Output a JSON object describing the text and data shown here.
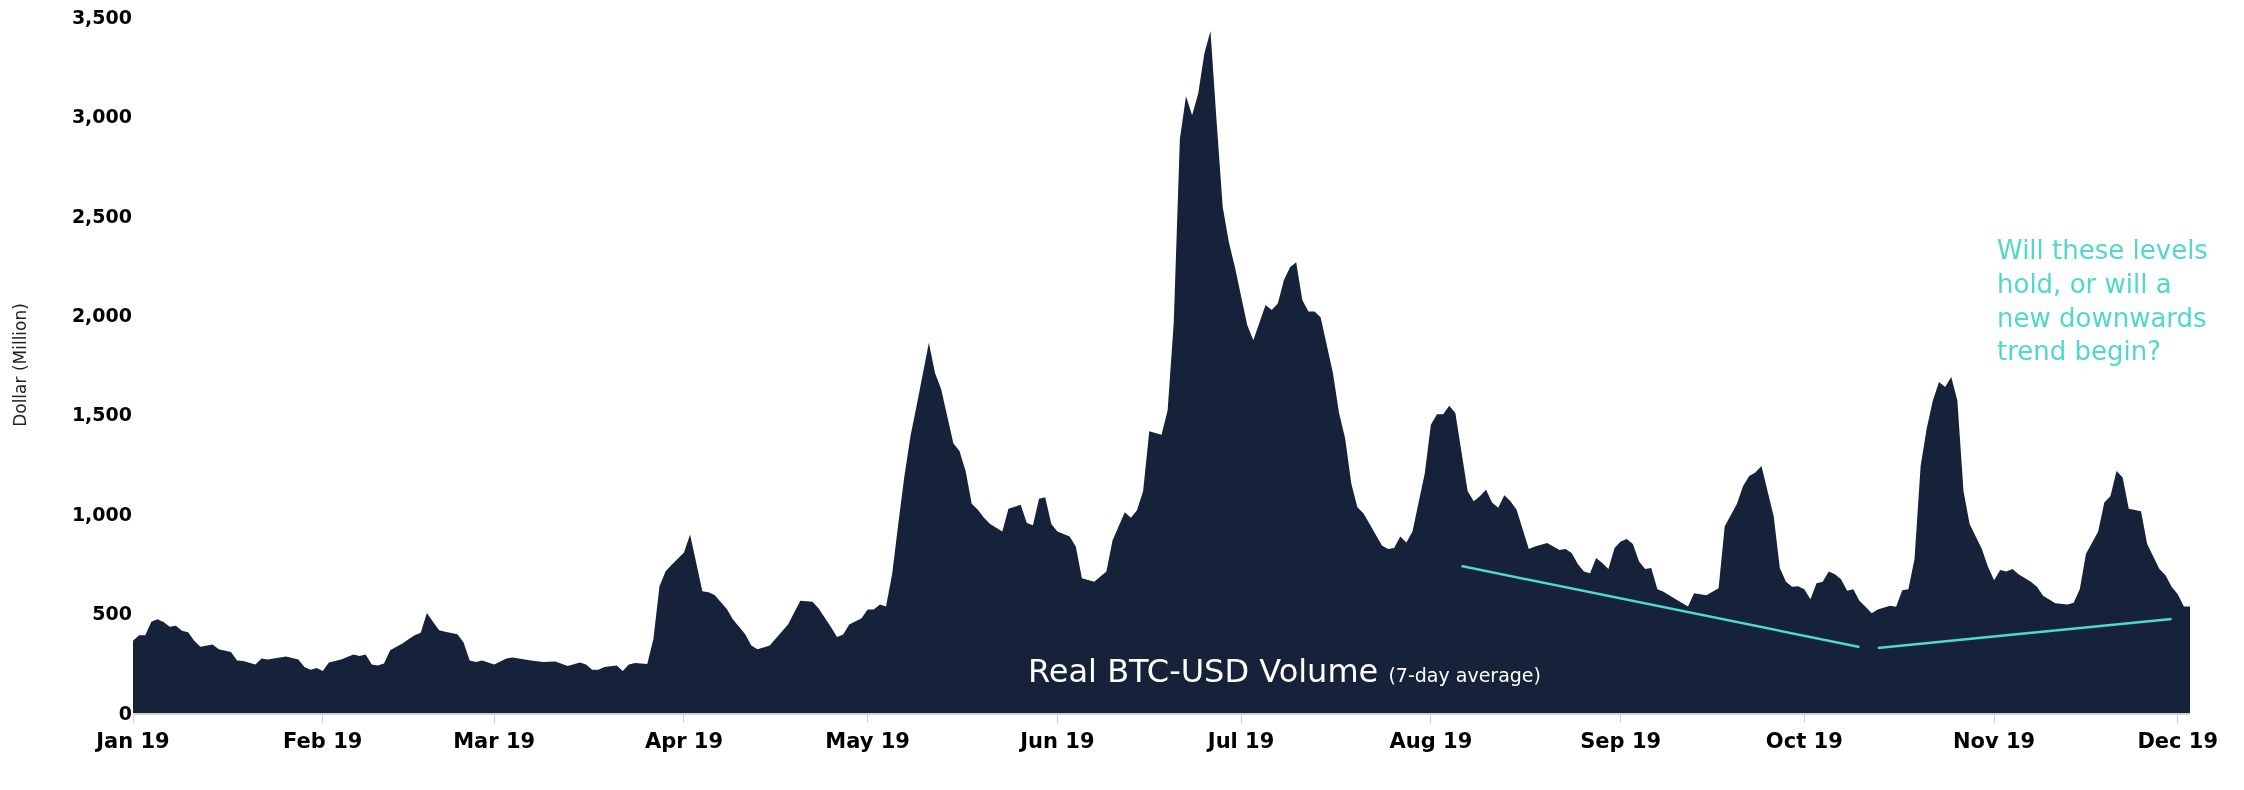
{
  "chart_data": {
    "type": "area",
    "title": "Real BTC-USD Volume",
    "subtitle": "(7-day average)",
    "ylabel": "Dollar (Million)",
    "annotations": [
      "Will these levels hold, or will a new downwards trend begin?"
    ],
    "xlim": [
      "2019-01-01",
      "2019-12-03"
    ],
    "xticks": [
      {
        "value": "2019-01-01",
        "label": "Jan 19"
      },
      {
        "value": "2019-02-01",
        "label": "Feb 19"
      },
      {
        "value": "2019-03-01",
        "label": "Mar 19"
      },
      {
        "value": "2019-04-01",
        "label": "Apr 19"
      },
      {
        "value": "2019-05-01",
        "label": "May 19"
      },
      {
        "value": "2019-06-01",
        "label": "Jun 19"
      },
      {
        "value": "2019-07-01",
        "label": "Jul 19"
      },
      {
        "value": "2019-08-01",
        "label": "Aug 19"
      },
      {
        "value": "2019-09-01",
        "label": "Sep 19"
      },
      {
        "value": "2019-10-01",
        "label": "Oct 19"
      },
      {
        "value": "2019-11-01",
        "label": "Nov 19"
      },
      {
        "value": "2019-12-01",
        "label": "Dec 19"
      }
    ],
    "ylim": [
      0,
      3500
    ],
    "yticks": [
      0,
      500,
      {
        "value": 1000,
        "label": "1,000"
      },
      {
        "value": 1500,
        "label": "1,500"
      },
      {
        "value": 2000,
        "label": "2,000"
      },
      {
        "value": 2500,
        "label": "2,500"
      },
      {
        "value": 3000,
        "label": "3,000"
      },
      {
        "value": 3500,
        "label": "3,500"
      }
    ],
    "series": [
      {
        "color": "#16223a",
        "x": [
          "2019-01-01",
          "2019-01-02",
          "2019-01-03",
          "2019-01-04",
          "2019-01-05",
          "2019-01-06",
          "2019-01-07",
          "2019-01-08",
          "2019-01-09",
          "2019-01-10",
          "2019-01-11",
          "2019-01-12",
          "2019-01-14",
          "2019-01-15",
          "2019-01-17",
          "2019-01-18",
          "2019-01-19",
          "2019-01-21",
          "2019-01-22",
          "2019-01-23",
          "2019-01-26",
          "2019-01-28",
          "2019-01-29",
          "2019-01-30",
          "2019-01-31",
          "2019-02-01",
          "2019-02-02",
          "2019-02-04",
          "2019-02-06",
          "2019-02-07",
          "2019-02-08",
          "2019-02-09",
          "2019-02-10",
          "2019-02-11",
          "2019-02-12",
          "2019-02-14",
          "2019-02-15",
          "2019-02-16",
          "2019-02-17",
          "2019-02-18",
          "2019-02-19",
          "2019-02-20",
          "2019-02-21",
          "2019-02-23",
          "2019-02-24",
          "2019-02-25",
          "2019-02-26",
          "2019-02-27",
          "2019-03-01",
          "2019-03-03",
          "2019-03-04",
          "2019-03-07",
          "2019-03-09",
          "2019-03-11",
          "2019-03-13",
          "2019-03-15",
          "2019-03-16",
          "2019-03-17",
          "2019-03-18",
          "2019-03-19",
          "2019-03-21",
          "2019-03-22",
          "2019-03-23",
          "2019-03-24",
          "2019-03-26",
          "2019-03-27",
          "2019-03-28",
          "2019-03-29",
          "2019-03-30",
          "2019-04-01",
          "2019-04-02",
          "2019-04-04",
          "2019-04-05",
          "2019-04-06",
          "2019-04-08",
          "2019-04-09",
          "2019-04-10",
          "2019-04-11",
          "2019-04-12",
          "2019-04-13",
          "2019-04-15",
          "2019-04-18",
          "2019-04-20",
          "2019-04-22",
          "2019-04-23",
          "2019-04-25",
          "2019-04-26",
          "2019-04-27",
          "2019-04-28",
          "2019-04-30",
          "2019-05-01",
          "2019-05-02",
          "2019-05-03",
          "2019-05-04",
          "2019-05-05",
          "2019-05-06",
          "2019-05-07",
          "2019-05-08",
          "2019-05-09",
          "2019-05-11",
          "2019-05-12",
          "2019-05-13",
          "2019-05-15",
          "2019-05-16",
          "2019-05-17",
          "2019-05-18",
          "2019-05-19",
          "2019-05-20",
          "2019-05-21",
          "2019-05-23",
          "2019-05-24",
          "2019-05-26",
          "2019-05-27",
          "2019-05-28",
          "2019-05-29",
          "2019-05-30",
          "2019-05-31",
          "2019-06-01",
          "2019-06-03",
          "2019-06-04",
          "2019-06-05",
          "2019-06-07",
          "2019-06-09",
          "2019-06-10",
          "2019-06-12",
          "2019-06-13",
          "2019-06-14",
          "2019-06-15",
          "2019-06-16",
          "2019-06-18",
          "2019-06-19",
          "2019-06-20",
          "2019-06-21",
          "2019-06-22",
          "2019-06-23",
          "2019-06-24",
          "2019-06-25",
          "2019-06-26",
          "2019-06-27",
          "2019-06-28",
          "2019-06-29",
          "2019-06-30",
          "2019-07-02",
          "2019-07-03",
          "2019-07-05",
          "2019-07-06",
          "2019-07-07",
          "2019-07-08",
          "2019-07-09",
          "2019-07-10",
          "2019-07-11",
          "2019-07-12",
          "2019-07-13",
          "2019-07-14",
          "2019-07-16",
          "2019-07-17",
          "2019-07-18",
          "2019-07-19",
          "2019-07-20",
          "2019-07-21",
          "2019-07-22",
          "2019-07-24",
          "2019-07-25",
          "2019-07-26",
          "2019-07-27",
          "2019-07-28",
          "2019-07-29",
          "2019-07-31",
          "2019-08-01",
          "2019-08-02",
          "2019-08-03",
          "2019-08-04",
          "2019-08-05",
          "2019-08-07",
          "2019-08-08",
          "2019-08-09",
          "2019-08-10",
          "2019-08-11",
          "2019-08-12",
          "2019-08-13",
          "2019-08-14",
          "2019-08-15",
          "2019-08-17",
          "2019-08-18",
          "2019-08-20",
          "2019-08-22",
          "2019-08-23",
          "2019-08-24",
          "2019-08-25",
          "2019-08-26",
          "2019-08-27",
          "2019-08-28",
          "2019-08-29",
          "2019-08-30",
          "2019-08-31",
          "2019-09-01",
          "2019-09-02",
          "2019-09-03",
          "2019-09-04",
          "2019-09-05",
          "2019-09-06",
          "2019-09-07",
          "2019-09-08",
          "2019-09-10",
          "2019-09-12",
          "2019-09-13",
          "2019-09-15",
          "2019-09-17",
          "2019-09-18",
          "2019-09-20",
          "2019-09-21",
          "2019-09-22",
          "2019-09-23",
          "2019-09-24",
          "2019-09-26",
          "2019-09-27",
          "2019-09-28",
          "2019-09-29",
          "2019-09-30",
          "2019-10-01",
          "2019-10-02",
          "2019-10-03",
          "2019-10-04",
          "2019-10-05",
          "2019-10-06",
          "2019-10-07",
          "2019-10-08",
          "2019-10-09",
          "2019-10-10",
          "2019-10-11",
          "2019-10-12",
          "2019-10-13",
          "2019-10-15",
          "2019-10-16",
          "2019-10-17",
          "2019-10-18",
          "2019-10-19",
          "2019-10-20",
          "2019-10-21",
          "2019-10-22",
          "2019-10-23",
          "2019-10-24",
          "2019-10-25",
          "2019-10-26",
          "2019-10-27",
          "2019-10-28",
          "2019-10-30",
          "2019-10-31",
          "2019-11-01",
          "2019-11-02",
          "2019-11-03",
          "2019-11-04",
          "2019-11-05",
          "2019-11-07",
          "2019-11-08",
          "2019-11-09",
          "2019-11-11",
          "2019-11-13",
          "2019-11-14",
          "2019-11-15",
          "2019-11-16",
          "2019-11-18",
          "2019-11-19",
          "2019-11-20",
          "2019-11-21",
          "2019-11-22",
          "2019-11-23",
          "2019-11-25",
          "2019-11-26",
          "2019-11-28",
          "2019-11-29",
          "2019-11-30",
          "2019-12-01",
          "2019-12-02",
          "2019-12-03"
        ],
        "values": [
          363,
          391,
          391,
          459,
          472,
          457,
          434,
          439,
          414,
          406,
          363,
          333,
          345,
          320,
          307,
          264,
          261,
          244,
          274,
          269,
          284,
          269,
          231,
          218,
          226,
          211,
          254,
          269,
          294,
          287,
          294,
          244,
          239,
          249,
          315,
          350,
          371,
          391,
          404,
          503,
          459,
          416,
          409,
          396,
          355,
          264,
          256,
          264,
          244,
          274,
          279,
          264,
          256,
          259,
          236,
          254,
          244,
          218,
          218,
          231,
          239,
          211,
          244,
          251,
          246,
          371,
          637,
          713,
          746,
          807,
          898,
          612,
          607,
          594,
          523,
          470,
          434,
          396,
          340,
          320,
          339,
          445,
          564,
          559,
          526,
          433,
          382,
          395,
          445,
          476,
          521,
          521,
          546,
          536,
          698,
          951,
          1191,
          1393,
          1545,
          1862,
          1710,
          1629,
          1356,
          1318,
          1217,
          1052,
          1022,
          982,
          951,
          913,
          1027,
          1047,
          956,
          944,
          1078,
          1085,
          951,
          913,
          888,
          837,
          678,
          660,
          711,
          868,
          1009,
          982,
          1020,
          1116,
          1417,
          1399,
          1521,
          1963,
          2887,
          3102,
          3006,
          3115,
          3317,
          3430,
          2975,
          2545,
          2368,
          2241,
          1951,
          1875,
          2052,
          2027,
          2059,
          2178,
          2241,
          2267,
          2077,
          2019,
          2019,
          1989,
          1710,
          1508,
          1381,
          1154,
          1035,
          1003,
          951,
          842,
          825,
          830,
          888,
          857,
          913,
          1205,
          1449,
          1502,
          1502,
          1545,
          1508,
          1116,
          1065,
          1090,
          1123,
          1058,
          1032,
          1095,
          1065,
          1022,
          825,
          837,
          855,
          820,
          825,
          805,
          749,
          711,
          703,
          779,
          754,
          724,
          830,
          863,
          875,
          850,
          762,
          724,
          729,
          622,
          610,
          572,
          536,
          602,
          592,
          627,
          939,
          1052,
          1141,
          1192,
          1209,
          1242,
          989,
          729,
          660,
          635,
          638,
          622,
          572,
          653,
          660,
          711,
          698,
          673,
          615,
          622,
          564,
          534,
          501,
          521,
          539,
          534,
          617,
          622,
          774,
          1242,
          1432,
          1571,
          1665,
          1639,
          1690,
          1571,
          1116,
          951,
          825,
          736,
          668,
          719,
          711,
          724,
          698,
          660,
          635,
          589,
          552,
          546,
          554,
          622,
          799,
          913,
          1058,
          1090,
          1217,
          1184,
          1027,
          1015,
          850,
          724,
          693,
          635,
          597,
          536,
          536
        ]
      },
      {
        "type": "line",
        "color": "#4fd8cb",
        "x": [
          "2019-08-06",
          "2019-10-10"
        ],
        "values": [
          739,
          332
        ]
      },
      {
        "type": "line",
        "color": "#4fd8cb",
        "x": [
          "2019-10-13",
          "2019-11-30"
        ],
        "values": [
          327,
          473
        ]
      }
    ]
  }
}
